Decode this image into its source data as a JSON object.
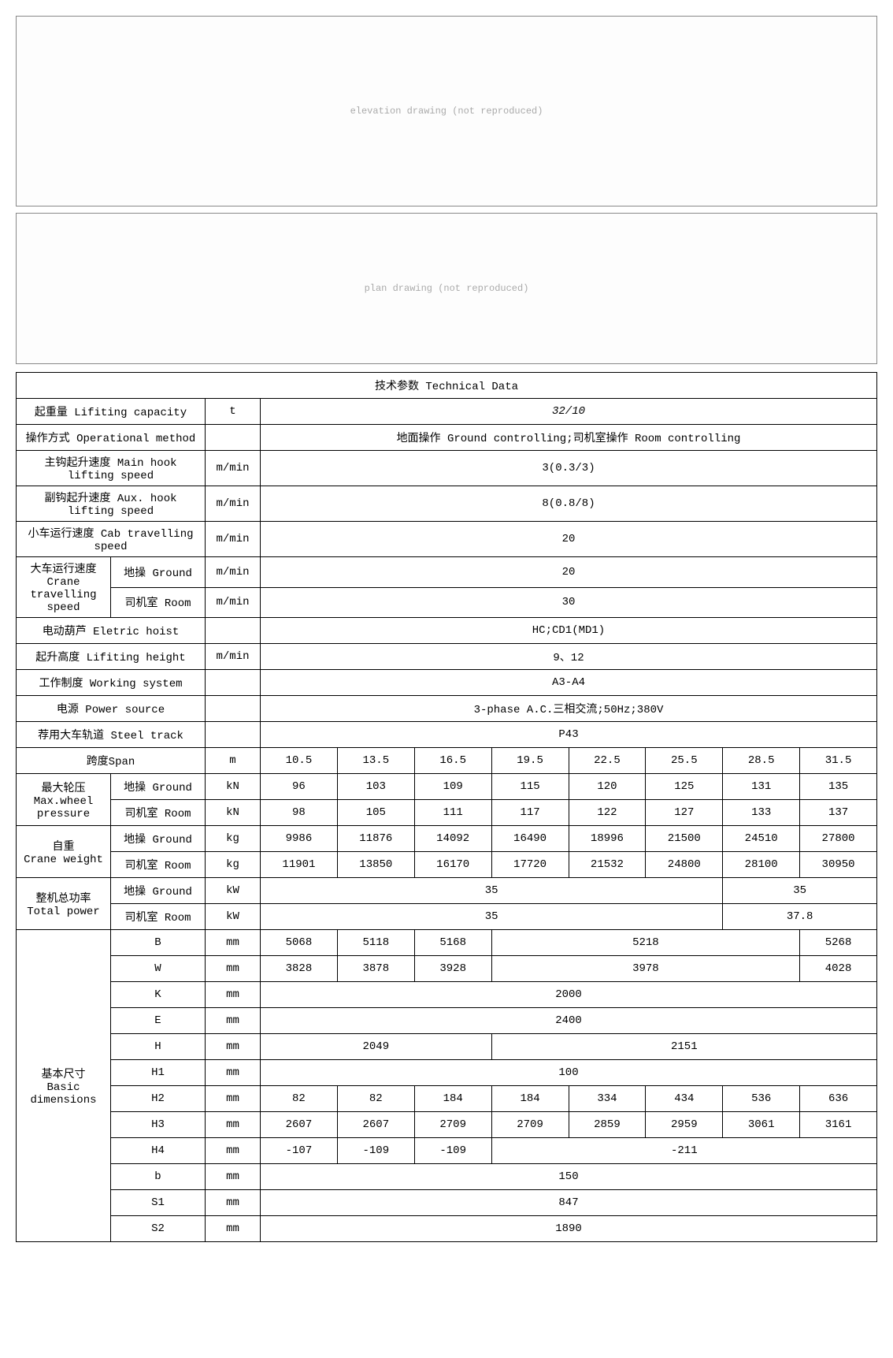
{
  "diagram1_caption": "elevation drawing (not reproduced)",
  "diagram2_caption": "plan drawing (not reproduced)",
  "table_title": "技术参数 Technical Data",
  "rows": {
    "lifting_capacity": {
      "label": "起重量 Lifiting capacity",
      "unit": "t",
      "value": "32/10"
    },
    "operational_method": {
      "label": "操作方式 Operational method",
      "unit": "",
      "value": "地面操作 Ground controlling;司机室操作 Room controlling"
    },
    "main_hook_speed": {
      "label": "主钩起升速度 Main hook lifting speed",
      "unit": "m/min",
      "value": "3(0.3/3)"
    },
    "aux_hook_speed": {
      "label": "副钩起升速度 Aux. hook lifting speed",
      "unit": "m/min",
      "value": "8(0.8/8)"
    },
    "cab_travel_speed": {
      "label": "小车运行速度 Cab travelling speed",
      "unit": "m/min",
      "value": "20"
    },
    "crane_travel_speed": {
      "label_cn": "大车运行速度",
      "label_en": "Crane travelling speed",
      "ground": {
        "sub": "地操 Ground",
        "unit": "m/min",
        "value": "20"
      },
      "room": {
        "sub": "司机室 Room",
        "unit": "m/min",
        "value": "30"
      }
    },
    "electric_hoist": {
      "label": "电动葫芦 Eletric hoist",
      "unit": "",
      "value": "HC;CD1(MD1)"
    },
    "lifting_height": {
      "label": "起升高度 Lifiting height",
      "unit": "m/min",
      "value": "9、12"
    },
    "working_system": {
      "label": "工作制度 Working system",
      "unit": "",
      "value": "A3-A4"
    },
    "power_source": {
      "label": "电源 Power source",
      "unit": "",
      "value": "3-phase A.C.三相交流;50Hz;380V"
    },
    "steel_track": {
      "label": "荐用大车轨道 Steel track",
      "unit": "",
      "value": "P43"
    },
    "span": {
      "label": "跨度Span",
      "unit": "m",
      "values": [
        "10.5",
        "13.5",
        "16.5",
        "19.5",
        "22.5",
        "25.5",
        "28.5",
        "31.5"
      ]
    },
    "max_wheel_pressure": {
      "label_cn": "最大轮压",
      "label_en": "Max.wheel pressure",
      "ground": {
        "sub": "地操 Ground",
        "unit": "kN",
        "values": [
          "96",
          "103",
          "109",
          "115",
          "120",
          "125",
          "131",
          "135"
        ]
      },
      "room": {
        "sub": "司机室 Room",
        "unit": "kN",
        "values": [
          "98",
          "105",
          "111",
          "117",
          "122",
          "127",
          "133",
          "137"
        ]
      }
    },
    "crane_weight": {
      "label_cn": "自重",
      "label_en": "Crane weight",
      "ground": {
        "sub": "地操 Ground",
        "unit": "kg",
        "values": [
          "9986",
          "11876",
          "14092",
          "16490",
          "18996",
          "21500",
          "24510",
          "27800"
        ]
      },
      "room": {
        "sub": "司机室 Room",
        "unit": "kg",
        "values": [
          "11901",
          "13850",
          "16170",
          "17720",
          "21532",
          "24800",
          "28100",
          "30950"
        ]
      }
    },
    "total_power": {
      "label_cn": "整机总功率",
      "label_en": "Total power",
      "ground": {
        "sub": "地操 Ground",
        "unit": "kW",
        "v1": "35",
        "v2": "35"
      },
      "room": {
        "sub": "司机室 Room",
        "unit": "kW",
        "v1": "35",
        "v2": "37.8"
      }
    },
    "basic_dimensions": {
      "label_cn": "基本尺寸",
      "label_en": "Basic dimensions",
      "B": {
        "sym": "B",
        "unit": "mm",
        "v": [
          "5068",
          "5118",
          "5168"
        ],
        "merged4": "5218",
        "last": "5268"
      },
      "W": {
        "sym": "W",
        "unit": "mm",
        "v": [
          "3828",
          "3878",
          "3928"
        ],
        "merged4": "3978",
        "last": "4028"
      },
      "K": {
        "sym": "K",
        "unit": "mm",
        "all": "2000"
      },
      "E": {
        "sym": "E",
        "unit": "mm",
        "all": "2400"
      },
      "H": {
        "sym": "H",
        "unit": "mm",
        "first3": "2049",
        "last5": "2151"
      },
      "H1": {
        "sym": "H1",
        "unit": "mm",
        "all": "100"
      },
      "H2": {
        "sym": "H2",
        "unit": "mm",
        "v8": [
          "82",
          "82",
          "184",
          "184",
          "334",
          "434",
          "536",
          "636"
        ]
      },
      "H3": {
        "sym": "H3",
        "unit": "mm",
        "v8": [
          "2607",
          "2607",
          "2709",
          "2709",
          "2859",
          "2959",
          "3061",
          "3161"
        ]
      },
      "H4": {
        "sym": "H4",
        "unit": "mm",
        "v3": [
          "-107",
          "-109",
          "-109"
        ],
        "last5": "-211"
      },
      "b": {
        "sym": "b",
        "unit": "mm",
        "all": "150"
      },
      "S1": {
        "sym": "S1",
        "unit": "mm",
        "all": "847"
      },
      "S2": {
        "sym": "S2",
        "unit": "mm",
        "all": "1890"
      }
    }
  }
}
